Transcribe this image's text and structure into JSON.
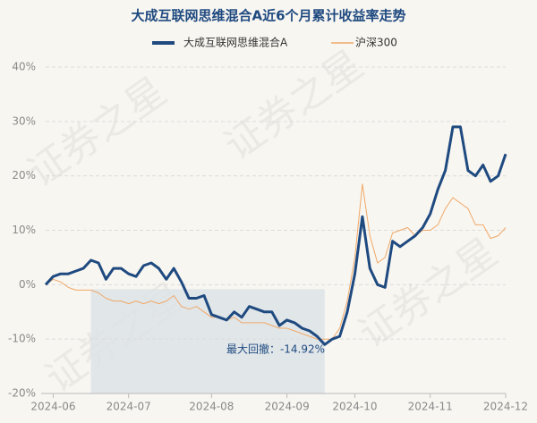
{
  "chart_data": {
    "type": "line",
    "title": "大成互联网思维混合A近6个月累计收益率走势",
    "watermark": "证券之星",
    "annotation": "最大回撤：-14.92%",
    "categories": [
      null,
      "2024-06",
      null,
      null,
      null,
      null,
      null,
      null,
      null,
      null,
      null,
      "2024-07",
      null,
      null,
      null,
      null,
      null,
      null,
      null,
      null,
      null,
      null,
      "2024-08",
      null,
      null,
      null,
      null,
      null,
      null,
      null,
      null,
      null,
      "2024-09",
      null,
      null,
      null,
      null,
      null,
      null,
      null,
      null,
      "2024-10",
      null,
      null,
      null,
      null,
      null,
      null,
      null,
      null,
      null,
      "2024-11",
      null,
      null,
      null,
      null,
      null,
      null,
      null,
      null,
      null,
      "2024-12"
    ],
    "series": [
      {
        "name": "大成互联网思维混合A",
        "color": "#1f4a80",
        "values": [
          0,
          1.5,
          2,
          2,
          2.5,
          3,
          4.5,
          4,
          1,
          3,
          3,
          2,
          1.5,
          3.5,
          4,
          3,
          1,
          3,
          0.5,
          -2.5,
          -2.5,
          -2,
          -5.5,
          -6,
          -6.5,
          -5,
          -6,
          -4,
          -4.5,
          -5,
          -5,
          -7.5,
          -6.5,
          -7,
          -8,
          -8.5,
          -9.5,
          -11,
          -10,
          -9.5,
          -5,
          2,
          12.5,
          3,
          0,
          -0.5,
          8,
          7,
          8,
          9,
          10.5,
          13,
          17.5,
          21,
          29,
          29,
          21,
          20,
          22,
          19,
          20,
          24
        ]
      },
      {
        "name": "沪深300",
        "color": "#f0a868",
        "values": [
          0,
          1,
          0.5,
          -0.5,
          -1,
          -1,
          -1,
          -1.5,
          -2.5,
          -3,
          -3,
          -3.5,
          -3,
          -3.5,
          -3,
          -3.5,
          -3,
          -2,
          -4,
          -4.5,
          -4,
          -5,
          -6,
          -6,
          -6.5,
          -6,
          -7,
          -7,
          -7,
          -7,
          -7.5,
          -8,
          -8,
          -8.5,
          -9,
          -9.5,
          -10,
          -10,
          -10,
          -8,
          -3,
          5,
          18.5,
          9,
          4,
          5,
          9.5,
          10,
          10.5,
          9,
          10,
          10,
          11,
          14,
          16,
          15,
          14,
          11,
          11,
          8.5,
          9,
          10.5
        ]
      }
    ],
    "ylim": [
      -20,
      40
    ],
    "yticks": [
      {
        "value": -20,
        "label": "-20%"
      },
      {
        "value": -10,
        "label": "-10%"
      },
      {
        "value": 0,
        "label": "0%"
      },
      {
        "value": 10,
        "label": "10%"
      },
      {
        "value": 20,
        "label": "20%"
      },
      {
        "value": 30,
        "label": "30%"
      },
      {
        "value": 40,
        "label": "40%"
      }
    ],
    "grid": true
  }
}
